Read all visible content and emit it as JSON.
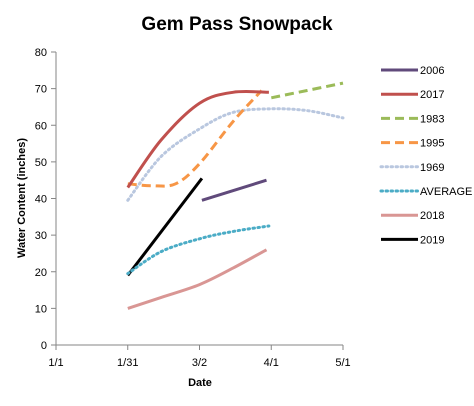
{
  "chart_data": {
    "type": "line",
    "title": "Gem Pass Snowpack",
    "xlabel": "Date",
    "ylabel": "Water Content (inches)",
    "x_axis": {
      "categories": [
        "1/1",
        "1/31",
        "3/2",
        "4/1",
        "5/1"
      ],
      "range": [
        "1/1",
        "5/1"
      ]
    },
    "ylim": [
      0,
      80
    ],
    "y_ticks": [
      "0",
      "10",
      "20",
      "30",
      "40",
      "50",
      "60",
      "70",
      "80"
    ],
    "grid": false,
    "legend_position": "right",
    "series": [
      {
        "name": "2006",
        "color": "#604a7b",
        "dash": "solid",
        "smooth": true,
        "points": [
          [
            "3/3",
            39.5
          ],
          [
            "3/30",
            45
          ]
        ]
      },
      {
        "name": "2017",
        "color": "#c0504d",
        "dash": "solid",
        "smooth": true,
        "points": [
          [
            "1/31",
            43
          ],
          [
            "2/14",
            56
          ],
          [
            "3/2",
            66
          ],
          [
            "3/16",
            69
          ],
          [
            "3/31",
            69
          ]
        ]
      },
      {
        "name": "1983",
        "color": "#9bbb59",
        "dash": "dashed",
        "smooth": true,
        "points": [
          [
            "4/1",
            67.5
          ],
          [
            "4/16",
            69.5
          ],
          [
            "5/1",
            71.5
          ]
        ]
      },
      {
        "name": "1995",
        "color": "#f79646",
        "dash": "dashed",
        "smooth": true,
        "points": [
          [
            "1/31",
            44
          ],
          [
            "2/10",
            43.5
          ],
          [
            "2/20",
            44
          ],
          [
            "3/2",
            49.5
          ],
          [
            "3/16",
            61
          ],
          [
            "3/28",
            69.5
          ]
        ]
      },
      {
        "name": "1969",
        "color": "#b9c7df",
        "dash": "dotted",
        "smooth": true,
        "points": [
          [
            "1/31",
            39.5
          ],
          [
            "2/14",
            51.5
          ],
          [
            "3/2",
            59
          ],
          [
            "3/16",
            63.5
          ],
          [
            "4/1",
            64.5
          ],
          [
            "4/16",
            64
          ],
          [
            "5/1",
            62
          ]
        ]
      },
      {
        "name": "AVERAGE",
        "color": "#4bacc6",
        "dash": "dotted",
        "smooth": true,
        "points": [
          [
            "1/31",
            19.5
          ],
          [
            "2/14",
            25.5
          ],
          [
            "3/2",
            29
          ],
          [
            "3/16",
            31
          ],
          [
            "3/31",
            32.5
          ]
        ]
      },
      {
        "name": "2018",
        "color": "#d99694",
        "dash": "solid",
        "smooth": true,
        "points": [
          [
            "1/31",
            10
          ],
          [
            "2/14",
            13
          ],
          [
            "3/2",
            16.5
          ],
          [
            "3/16",
            21
          ],
          [
            "3/30",
            26
          ]
        ]
      },
      {
        "name": "2019",
        "color": "#000000",
        "dash": "solid",
        "smooth": false,
        "points": [
          [
            "1/31",
            19
          ],
          [
            "3/3",
            45.5
          ]
        ]
      }
    ]
  }
}
